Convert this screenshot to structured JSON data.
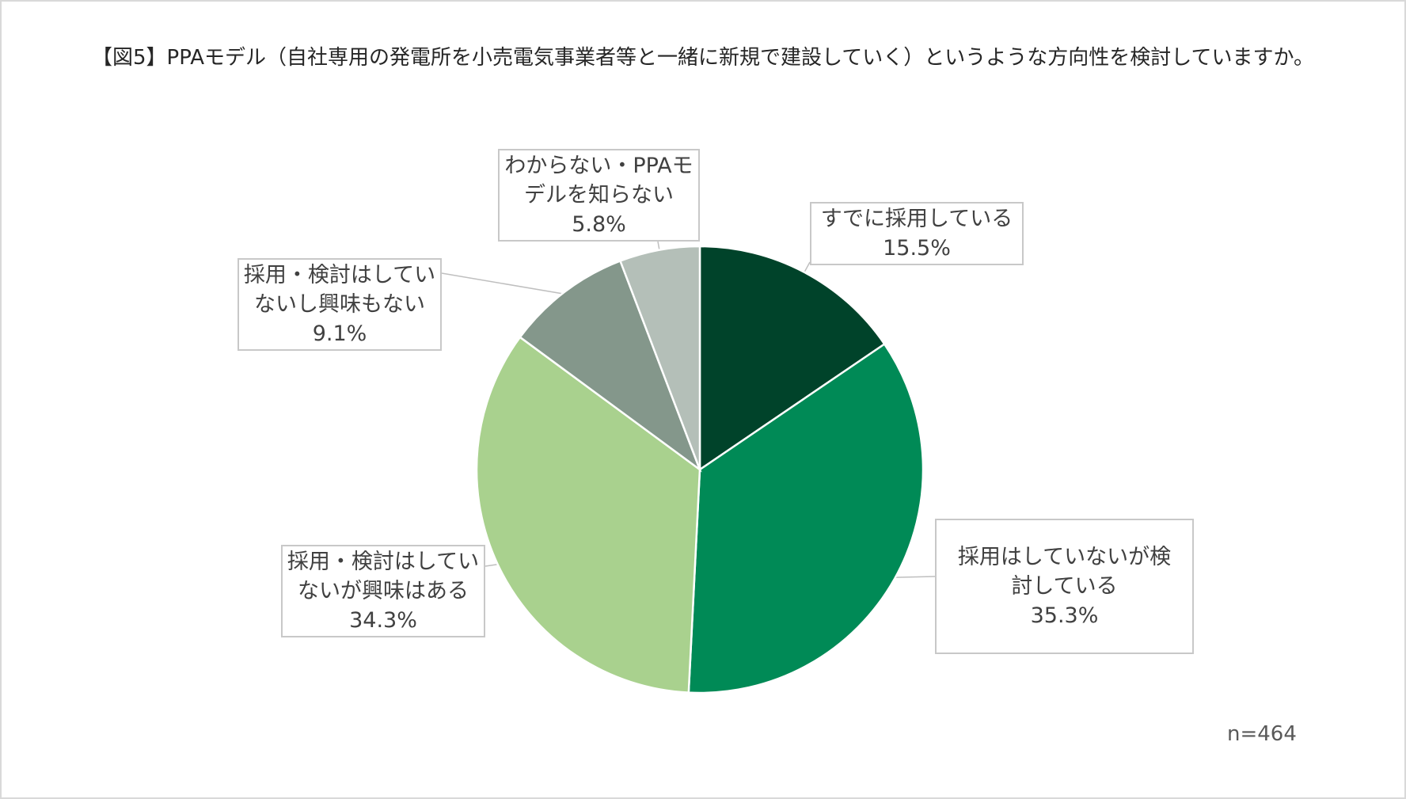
{
  "chart_data": {
    "type": "pie",
    "title": "【図5】PPAモデル（自社専用の発電所を小売電気事業者等と一緒に新規で建設していく）というような方向性を検討していますか。",
    "slices": [
      {
        "label_lines": [
          "すでに採用している"
        ],
        "value": 15.5,
        "value_label": "15.5%",
        "color": "#00432a"
      },
      {
        "label_lines": [
          "採用はしていないが検",
          "討している"
        ],
        "value": 35.3,
        "value_label": "35.3%",
        "color": "#008a56"
      },
      {
        "label_lines": [
          "採用・検討はしてい",
          "ないが興味はある"
        ],
        "value": 34.3,
        "value_label": "34.3%",
        "color": "#a9d18e"
      },
      {
        "label_lines": [
          "採用・検討はしてい",
          "ないし興味もない"
        ],
        "value": 9.1,
        "value_label": "9.1%",
        "color": "#84978b"
      },
      {
        "label_lines": [
          "わからない・PPAモ",
          "デルを知らない"
        ],
        "value": 5.8,
        "value_label": "5.8%",
        "color": "#b4bfb8"
      }
    ],
    "sample_size": "n=464"
  }
}
